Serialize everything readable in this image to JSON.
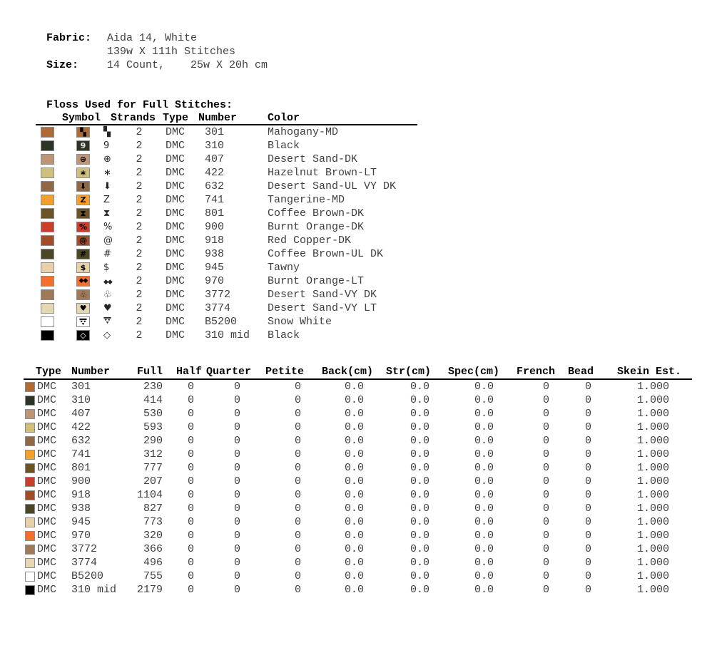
{
  "fabric_info": {
    "fabric_label": "Fabric:",
    "fabric_value": "Aida 14, White",
    "stitches_value": "139w X 111h Stitches",
    "size_label": "Size:",
    "size_value": "14 Count,    25w X 20h cm"
  },
  "floss_table": {
    "title": "Floss Used for Full Stitches:",
    "headers": {
      "symbol": "Symbol",
      "strands": "Strands",
      "type": "Type",
      "number": "Number",
      "color": "Color"
    },
    "rows": [
      {
        "symbol": "▚",
        "symbol_name": "checker-quadrant-icon",
        "sym_color": "#000000",
        "strands": "2",
        "type": "DMC",
        "number": "301",
        "color_name": "Mahogany-MD",
        "hex": "#ae6b37"
      },
      {
        "symbol": "9",
        "symbol_name": "script-nine-icon",
        "sym_color": "#e9e9e9",
        "strands": "2",
        "type": "DMC",
        "number": "310",
        "color_name": "Black",
        "hex": "#2c3425"
      },
      {
        "symbol": "⊕",
        "symbol_name": "circled-plus-icon",
        "sym_color": "#000000",
        "strands": "2",
        "type": "DMC",
        "number": "407",
        "color_name": "Desert Sand-DK",
        "hex": "#bd9478"
      },
      {
        "symbol": "∗",
        "symbol_name": "asterisk-star-icon",
        "sym_color": "#000000",
        "strands": "2",
        "type": "DMC",
        "number": "422",
        "color_name": "Hazelnut Brown-LT",
        "hex": "#cfc07e"
      },
      {
        "symbol": "⬇",
        "symbol_name": "down-arrow-icon",
        "sym_color": "#000000",
        "strands": "2",
        "type": "DMC",
        "number": "632",
        "color_name": "Desert Sand-UL VY DK",
        "hex": "#906845"
      },
      {
        "symbol": "Z",
        "symbol_name": "letter-z-icon",
        "sym_color": "#000000",
        "strands": "2",
        "type": "DMC",
        "number": "741",
        "color_name": "Tangerine-MD",
        "hex": "#f5a02b"
      },
      {
        "symbol": "⧗",
        "symbol_name": "hourglass-icon",
        "sym_color": "#000000",
        "strands": "2",
        "type": "DMC",
        "number": "801",
        "color_name": "Coffee Brown-DK",
        "hex": "#6b5326"
      },
      {
        "symbol": "%",
        "symbol_name": "percent-icon",
        "sym_color": "#000000",
        "strands": "2",
        "type": "DMC",
        "number": "900",
        "color_name": "Burnt Orange-DK",
        "hex": "#c8402c"
      },
      {
        "symbol": "@",
        "symbol_name": "spiral-icon",
        "sym_color": "#000000",
        "strands": "2",
        "type": "DMC",
        "number": "918",
        "color_name": "Red Copper-DK",
        "hex": "#a34c28"
      },
      {
        "symbol": "#",
        "symbol_name": "hash-icon",
        "sym_color": "#000000",
        "strands": "2",
        "type": "DMC",
        "number": "938",
        "color_name": "Coffee Brown-UL DK",
        "hex": "#4c4526"
      },
      {
        "symbol": "$",
        "symbol_name": "dollar-icon",
        "sym_color": "#000000",
        "strands": "2",
        "type": "DMC",
        "number": "945",
        "color_name": "Tawny",
        "hex": "#e8d0a8"
      },
      {
        "symbol": "◆◆",
        "symbol_name": "double-diamond-icon",
        "sym_color": "#000000",
        "strands": "2",
        "type": "DMC",
        "number": "970",
        "color_name": "Burnt Orange-LT",
        "hex": "#f26f2e"
      },
      {
        "symbol": "♧",
        "symbol_name": "club-trefoil-icon",
        "sym_color": "#000000",
        "strands": "2",
        "type": "DMC",
        "number": "3772",
        "color_name": "Desert Sand-VY DK",
        "hex": "#a07a58"
      },
      {
        "symbol": "♥",
        "symbol_name": "heart-icon",
        "sym_color": "#000000",
        "strands": "2",
        "type": "DMC",
        "number": "3774",
        "color_name": "Desert Sand-VY LT",
        "hex": "#e5d6b4"
      },
      {
        "symbol": "svg:tri-arrow-down",
        "symbol_name": "tri-arrow-down-icon",
        "sym_color": "#000000",
        "strands": "2",
        "type": "DMC",
        "number": "B5200",
        "color_name": "Snow White",
        "hex": "#ffffff"
      },
      {
        "symbol": "◇",
        "symbol_name": "diamond-outline-icon",
        "sym_color": "#ffffff",
        "strands": "2",
        "type": "DMC",
        "number": "310 mid",
        "color_name": "Black",
        "hex": "#000000"
      }
    ]
  },
  "usage_table": {
    "headers": [
      "Type",
      "Number",
      "Full",
      "Half",
      "Quarter",
      "Petite",
      "Back(cm)",
      "Str(cm)",
      "Spec(cm)",
      "French",
      "Bead",
      "Skein Est."
    ],
    "rows": [
      {
        "type": "DMC",
        "number": "301",
        "full": "230",
        "half": "0",
        "quarter": "0",
        "petite": "0",
        "back": "0.0",
        "str": "0.0",
        "spec": "0.0",
        "french": "0",
        "bead": "0",
        "skein": "1.000",
        "hex": "#ae6b37"
      },
      {
        "type": "DMC",
        "number": "310",
        "full": "414",
        "half": "0",
        "quarter": "0",
        "petite": "0",
        "back": "0.0",
        "str": "0.0",
        "spec": "0.0",
        "french": "0",
        "bead": "0",
        "skein": "1.000",
        "hex": "#2c3425"
      },
      {
        "type": "DMC",
        "number": "407",
        "full": "530",
        "half": "0",
        "quarter": "0",
        "petite": "0",
        "back": "0.0",
        "str": "0.0",
        "spec": "0.0",
        "french": "0",
        "bead": "0",
        "skein": "1.000",
        "hex": "#bd9478"
      },
      {
        "type": "DMC",
        "number": "422",
        "full": "593",
        "half": "0",
        "quarter": "0",
        "petite": "0",
        "back": "0.0",
        "str": "0.0",
        "spec": "0.0",
        "french": "0",
        "bead": "0",
        "skein": "1.000",
        "hex": "#cfc07e"
      },
      {
        "type": "DMC",
        "number": "632",
        "full": "290",
        "half": "0",
        "quarter": "0",
        "petite": "0",
        "back": "0.0",
        "str": "0.0",
        "spec": "0.0",
        "french": "0",
        "bead": "0",
        "skein": "1.000",
        "hex": "#906845"
      },
      {
        "type": "DMC",
        "number": "741",
        "full": "312",
        "half": "0",
        "quarter": "0",
        "petite": "0",
        "back": "0.0",
        "str": "0.0",
        "spec": "0.0",
        "french": "0",
        "bead": "0",
        "skein": "1.000",
        "hex": "#f5a02b"
      },
      {
        "type": "DMC",
        "number": "801",
        "full": "777",
        "half": "0",
        "quarter": "0",
        "petite": "0",
        "back": "0.0",
        "str": "0.0",
        "spec": "0.0",
        "french": "0",
        "bead": "0",
        "skein": "1.000",
        "hex": "#6b5326"
      },
      {
        "type": "DMC",
        "number": "900",
        "full": "207",
        "half": "0",
        "quarter": "0",
        "petite": "0",
        "back": "0.0",
        "str": "0.0",
        "spec": "0.0",
        "french": "0",
        "bead": "0",
        "skein": "1.000",
        "hex": "#c8402c"
      },
      {
        "type": "DMC",
        "number": "918",
        "full": "1104",
        "half": "0",
        "quarter": "0",
        "petite": "0",
        "back": "0.0",
        "str": "0.0",
        "spec": "0.0",
        "french": "0",
        "bead": "0",
        "skein": "1.000",
        "hex": "#a34c28"
      },
      {
        "type": "DMC",
        "number": "938",
        "full": "827",
        "half": "0",
        "quarter": "0",
        "petite": "0",
        "back": "0.0",
        "str": "0.0",
        "spec": "0.0",
        "french": "0",
        "bead": "0",
        "skein": "1.000",
        "hex": "#4c4526"
      },
      {
        "type": "DMC",
        "number": "945",
        "full": "773",
        "half": "0",
        "quarter": "0",
        "petite": "0",
        "back": "0.0",
        "str": "0.0",
        "spec": "0.0",
        "french": "0",
        "bead": "0",
        "skein": "1.000",
        "hex": "#e8d0a8"
      },
      {
        "type": "DMC",
        "number": "970",
        "full": "320",
        "half": "0",
        "quarter": "0",
        "petite": "0",
        "back": "0.0",
        "str": "0.0",
        "spec": "0.0",
        "french": "0",
        "bead": "0",
        "skein": "1.000",
        "hex": "#f26f2e"
      },
      {
        "type": "DMC",
        "number": "3772",
        "full": "366",
        "half": "0",
        "quarter": "0",
        "petite": "0",
        "back": "0.0",
        "str": "0.0",
        "spec": "0.0",
        "french": "0",
        "bead": "0",
        "skein": "1.000",
        "hex": "#a07a58"
      },
      {
        "type": "DMC",
        "number": "3774",
        "full": "496",
        "half": "0",
        "quarter": "0",
        "petite": "0",
        "back": "0.0",
        "str": "0.0",
        "spec": "0.0",
        "french": "0",
        "bead": "0",
        "skein": "1.000",
        "hex": "#e5d6b4"
      },
      {
        "type": "DMC",
        "number": "B5200",
        "full": "755",
        "half": "0",
        "quarter": "0",
        "petite": "0",
        "back": "0.0",
        "str": "0.0",
        "spec": "0.0",
        "french": "0",
        "bead": "0",
        "skein": "1.000",
        "hex": "#ffffff"
      },
      {
        "type": "DMC",
        "number": "310 mid",
        "full": "2179",
        "half": "0",
        "quarter": "0",
        "petite": "0",
        "back": "0.0",
        "str": "0.0",
        "spec": "0.0",
        "french": "0",
        "bead": "0",
        "skein": "1.000",
        "hex": "#000000"
      }
    ]
  }
}
